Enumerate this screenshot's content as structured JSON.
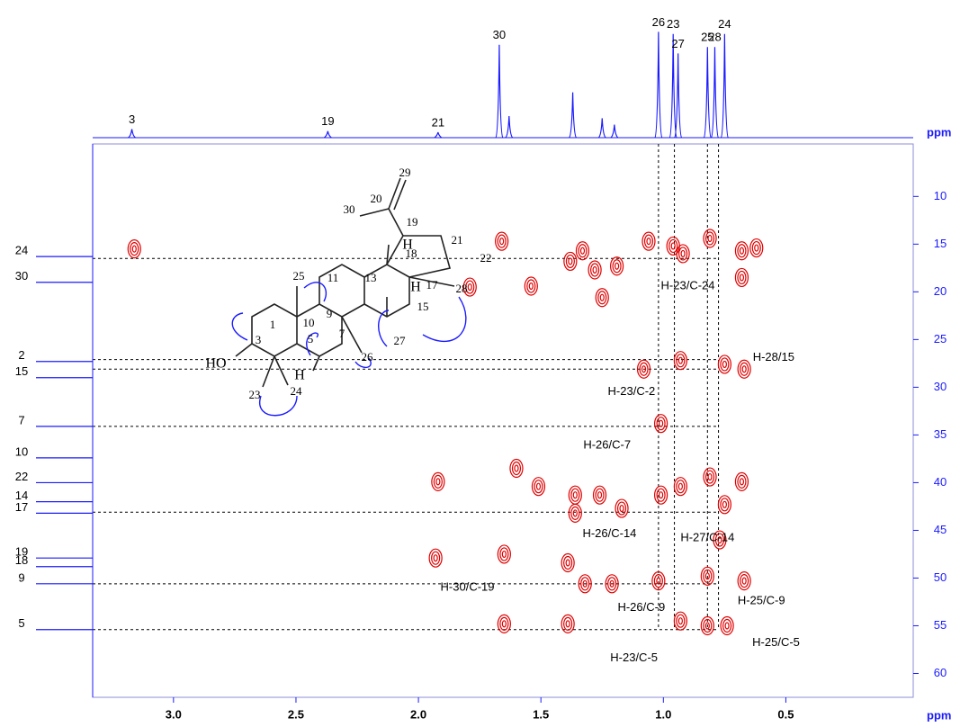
{
  "chart_data": {
    "type": "hmbc",
    "xlabel": "ppm",
    "ylabel": "ppm",
    "xlim": [
      3.33,
      -0.02
    ],
    "ylim": [
      4.5,
      62.5
    ],
    "xticks": [
      {
        "value": 3,
        "label": "3.0"
      },
      2.5,
      {
        "value": 2,
        "label": "2.0"
      },
      1.5,
      {
        "value": 1,
        "label": "1.0"
      },
      0.5
    ],
    "yticks": [
      10,
      15,
      20,
      25,
      30,
      35,
      40,
      45,
      50,
      55,
      60
    ],
    "contour_color": "#e00000",
    "axis_color": "#1a1aff",
    "top_spectrum": {
      "labels": [
        "3",
        "19",
        "21",
        "30",
        null,
        null,
        null,
        null,
        "26",
        "23",
        "27",
        "25",
        "28",
        "24"
      ],
      "x": [
        3.17,
        2.37,
        1.92,
        1.67,
        1.63,
        1.37,
        1.25,
        1.2,
        1.02,
        0.96,
        0.94,
        0.82,
        0.79,
        0.75
      ],
      "heights": [
        8,
        6,
        5,
        86,
        20,
        42,
        18,
        12,
        98,
        96,
        78,
        84,
        84,
        96
      ]
    },
    "left_projection": {
      "labels": [
        "24",
        "30",
        "2",
        "15",
        "7",
        "10",
        "22",
        "14",
        "17",
        "19",
        "18",
        "9",
        "5"
      ],
      "y": [
        16.3,
        19.0,
        27.3,
        29.0,
        34.1,
        37.4,
        40.0,
        42.0,
        43.2,
        47.9,
        48.8,
        50.6,
        55.4
      ]
    },
    "cross_peaks": {
      "x": [
        3.16,
        1.66,
        1.79,
        1.54,
        1.38,
        1.33,
        1.28,
        1.25,
        1.19,
        1.06,
        0.96,
        0.92,
        0.81,
        0.68,
        0.62,
        0.68,
        0.93,
        0.75,
        1.08,
        0.67,
        1.01,
        1.01,
        0.93,
        0.81,
        0.75,
        0.68,
        1.6,
        1.51,
        1.36,
        1.36,
        1.26,
        1.17,
        1.92,
        1.65,
        1.39,
        1.02,
        0.82,
        0.77,
        0.93,
        0.82,
        0.74,
        1.65,
        1.39,
        1.93,
        1.32,
        1.21,
        0.67
      ],
      "y": [
        15.5,
        14.7,
        19.5,
        19.4,
        16.8,
        15.7,
        17.7,
        20.6,
        17.3,
        14.7,
        15.2,
        16.0,
        14.4,
        15.7,
        15.4,
        18.5,
        27.2,
        27.6,
        28.1,
        28.1,
        33.8,
        41.3,
        40.4,
        39.4,
        42.3,
        39.9,
        38.5,
        40.4,
        41.3,
        43.2,
        41.3,
        42.7,
        39.9,
        47.5,
        48.4,
        50.3,
        49.8,
        46.0,
        54.5,
        55.0,
        55.0,
        54.8,
        54.8,
        47.9,
        50.6,
        50.6,
        50.3
      ]
    },
    "guides": {
      "h": [
        16.5,
        27.1,
        28.1,
        34.1,
        43.1,
        50.6,
        55.4
      ],
      "v": [
        1.02,
        0.955,
        0.82,
        0.775
      ]
    },
    "annotations": [
      {
        "text": "H-23/C-24",
        "x": 0.9,
        "y": 19.4
      },
      {
        "text": "H-28/15",
        "x": 0.55,
        "y": 26.9
      },
      {
        "text": "H-23/C-2",
        "x": 1.13,
        "y": 30.5
      },
      {
        "text": "H-26/C-7",
        "x": 1.23,
        "y": 36.1
      },
      {
        "text": "H-26/C-14",
        "x": 1.22,
        "y": 45.4
      },
      {
        "text": "H-27/C-14",
        "x": 0.82,
        "y": 45.8
      },
      {
        "text": "H-30/C-19",
        "x": 1.8,
        "y": 51.0
      },
      {
        "text": "H-26/C-9",
        "x": 1.09,
        "y": 53.1
      },
      {
        "text": "H-25/C-9",
        "x": 0.6,
        "y": 52.4
      },
      {
        "text": "H-25/C-5",
        "x": 0.54,
        "y": 56.8
      },
      {
        "text": "H-23/C-5",
        "x": 1.12,
        "y": 58.4
      }
    ],
    "structure_labels": [
      "29",
      "20",
      "30",
      "19",
      "21",
      "22",
      "H",
      "18",
      "13",
      "11",
      "25",
      "10",
      "9",
      "17",
      "28",
      "H",
      "15",
      "1",
      "5",
      "7",
      "27",
      "3",
      "26",
      "HO",
      "H",
      "23",
      "24"
    ]
  }
}
